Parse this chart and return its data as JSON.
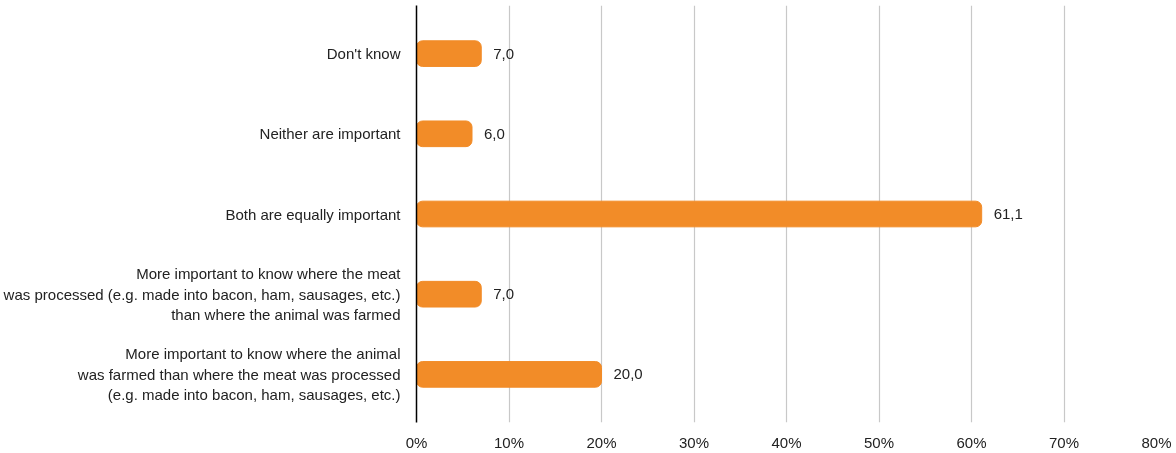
{
  "chart_data": {
    "type": "bar",
    "orientation": "horizontal",
    "categories": [
      "Don't know",
      "Neither are important",
      "Both are equally important",
      "More important to know where the meat\nwas processed (e.g. made into bacon, ham, sausages, etc.)\nthan where the animal was farmed",
      "More important to know where the animal\nwas farmed than where the meat was processed\n(e.g. made into bacon, ham, sausages, etc.)"
    ],
    "values": [
      7.0,
      6.0,
      61.1,
      7.0,
      20.0
    ],
    "value_labels": [
      "7,0",
      "6,0",
      "61,1",
      "7,0",
      "20,0"
    ],
    "color": "#f28c28",
    "xlim": [
      0,
      80
    ],
    "xticks": [
      {
        "value": 0,
        "label": "0%"
      },
      {
        "value": 10,
        "label": "10%"
      },
      {
        "value": 20,
        "label": "20%"
      },
      {
        "value": 30,
        "label": "30%"
      },
      {
        "value": 40,
        "label": "40%"
      },
      {
        "value": 50,
        "label": "50%"
      },
      {
        "value": 60,
        "label": "60%"
      },
      {
        "value": 70,
        "label": "70%"
      },
      {
        "value": 80,
        "label": "80%"
      }
    ],
    "grid": "x"
  }
}
